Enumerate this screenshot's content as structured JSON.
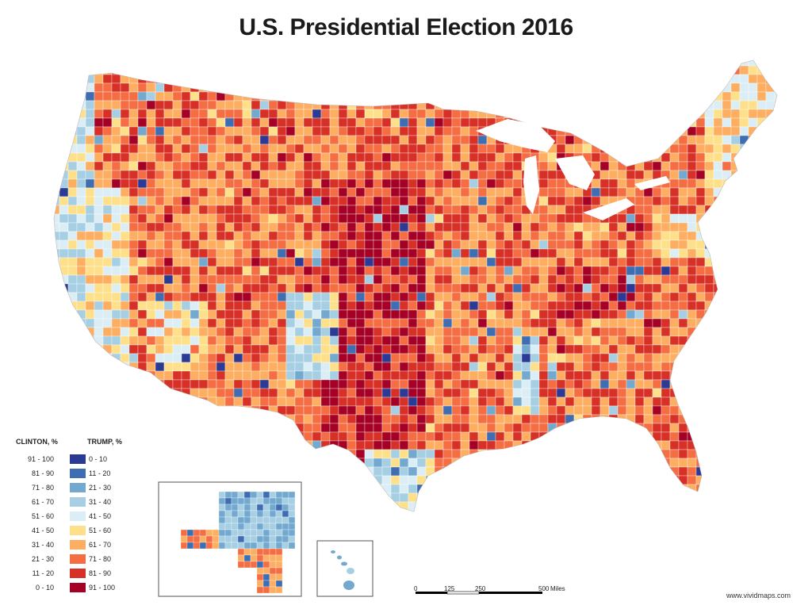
{
  "title": "U.S. Presidential Election 2016",
  "legend": {
    "clinton_header": "CLINTON, %",
    "trump_header": "TRUMP, %",
    "rows": [
      {
        "clinton": "91 - 100",
        "trump": "0 - 10",
        "color": "#2b3a94"
      },
      {
        "clinton": "81 - 90",
        "trump": "11 - 20",
        "color": "#3f6db1"
      },
      {
        "clinton": "71 - 80",
        "trump": "21 - 30",
        "color": "#74a9cf"
      },
      {
        "clinton": "61 - 70",
        "trump": "31 - 40",
        "color": "#a6cfe4"
      },
      {
        "clinton": "51 - 60",
        "trump": "41 - 50",
        "color": "#dbeef5"
      },
      {
        "clinton": "41 - 50",
        "trump": "51 - 60",
        "color": "#fee08b"
      },
      {
        "clinton": "31 - 40",
        "trump": "61 - 70",
        "color": "#fdae61"
      },
      {
        "clinton": "21 - 30",
        "trump": "71 - 80",
        "color": "#f46d43"
      },
      {
        "clinton": "11 - 20",
        "trump": "81 - 90",
        "color": "#d73027"
      },
      {
        "clinton": "0 - 10",
        "trump": "91 - 100",
        "color": "#a50026"
      }
    ]
  },
  "scale_bar": {
    "ticks": [
      "0",
      "125",
      "250",
      "500"
    ],
    "unit": "Miles"
  },
  "credit": "www.vividmaps.com",
  "colors": {
    "background": "#ffffff",
    "county_border": "#ffffff",
    "inset_border": "#555555"
  }
}
